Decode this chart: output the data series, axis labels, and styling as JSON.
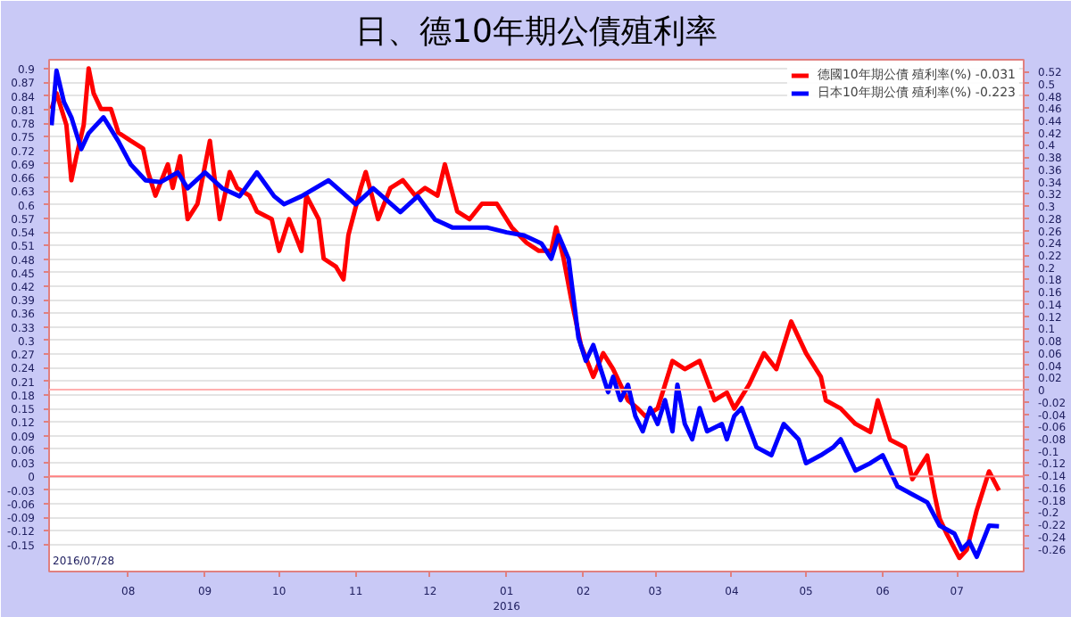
{
  "chart_data": {
    "type": "line",
    "title": "日、德10年期公債殖利率",
    "annotations": [
      "2016/07/28"
    ],
    "xlim": [
      "2015-06-30",
      "2016-07-28"
    ],
    "xticks": [
      {
        "value": "2015-08-01",
        "label": "08"
      },
      {
        "value": "2015-09-01",
        "label": "09"
      },
      {
        "value": "2015-10-01",
        "label": "10"
      },
      {
        "value": "2015-11-01",
        "label": "11"
      },
      {
        "value": "2015-12-01",
        "label": "12"
      },
      {
        "value": "2016-01-01",
        "label": "01\n2016"
      },
      {
        "value": "2016-02-01",
        "label": "02"
      },
      {
        "value": "2016-03-01",
        "label": "03"
      },
      {
        "value": "2016-04-01",
        "label": "04"
      },
      {
        "value": "2016-05-01",
        "label": "05"
      },
      {
        "value": "2016-06-01",
        "label": "06"
      },
      {
        "value": "2016-07-01",
        "label": "07"
      }
    ],
    "ylim": [
      -0.21,
      0.92
    ],
    "yticks": [
      0.9,
      0.87,
      0.84,
      0.81,
      0.78,
      0.75,
      0.72,
      0.69,
      0.66,
      0.63,
      0.6,
      0.57,
      0.54,
      0.51,
      0.48,
      0.45,
      0.42,
      0.39,
      0.36,
      0.33,
      0.3,
      0.27,
      0.24,
      0.21,
      0.18,
      0.15,
      0.12,
      0.09,
      0.06,
      0.03,
      0,
      -0.03,
      -0.06,
      -0.09,
      -0.12,
      -0.15
    ],
    "y2lim": [
      -0.297,
      0.539
    ],
    "y2ticks": [
      0.52,
      0.5,
      0.48,
      0.46,
      0.44,
      0.42,
      0.4,
      0.38,
      0.36,
      0.34,
      0.32,
      0.3,
      0.28,
      0.26,
      0.24,
      0.22,
      0.2,
      0.18,
      0.16,
      0.14,
      0.12,
      0.1,
      0.08,
      0.06,
      0.04,
      0.02,
      0,
      -0.02,
      -0.04,
      -0.06,
      -0.08,
      -0.1,
      -0.12,
      -0.14,
      -0.16,
      -0.18,
      -0.2,
      -0.22,
      -0.24,
      -0.26
    ],
    "grid": "y",
    "legend": "top right",
    "line_style": "solid",
    "ref_lines": [
      {
        "axis": "y",
        "value": 0,
        "color": "#ff8080"
      },
      {
        "axis": "y2",
        "value": 0,
        "color": "#ffb0b0"
      }
    ],
    "series": [
      {
        "name": "德國10年期公債 殖利率(%) -0.031",
        "color": "#ff0000",
        "x": [
          "2015-07-01",
          "2015-07-03",
          "2015-07-07",
          "2015-07-09",
          "2015-07-11",
          "2015-07-14",
          "2015-07-16",
          "2015-07-18",
          "2015-07-21",
          "2015-07-25",
          "2015-07-28",
          "2015-08-02",
          "2015-08-07",
          "2015-08-09",
          "2015-08-12",
          "2015-08-17",
          "2015-08-19",
          "2015-08-22",
          "2015-08-25",
          "2015-08-29",
          "2015-09-03",
          "2015-09-07",
          "2015-09-11",
          "2015-09-14",
          "2015-09-19",
          "2015-09-22",
          "2015-09-28",
          "2015-10-01",
          "2015-10-05",
          "2015-10-10",
          "2015-10-12",
          "2015-10-17",
          "2015-10-19",
          "2015-10-24",
          "2015-10-27",
          "2015-10-29",
          "2015-11-03",
          "2015-11-05",
          "2015-11-10",
          "2015-11-15",
          "2015-11-20",
          "2015-11-25",
          "2015-11-29",
          "2015-12-04",
          "2015-12-07",
          "2015-12-12",
          "2015-12-17",
          "2015-12-22",
          "2015-12-28",
          "2016-01-03",
          "2016-01-09",
          "2016-01-14",
          "2016-01-19",
          "2016-01-21",
          "2016-01-24",
          "2016-01-27",
          "2016-01-31",
          "2016-02-05",
          "2016-02-09",
          "2016-02-13",
          "2016-02-19",
          "2016-02-23",
          "2016-02-26",
          "2016-03-02",
          "2016-03-08",
          "2016-03-13",
          "2016-03-19",
          "2016-03-25",
          "2016-03-30",
          "2016-04-02",
          "2016-04-08",
          "2016-04-14",
          "2016-04-19",
          "2016-04-25",
          "2016-05-01",
          "2016-05-07",
          "2016-05-09",
          "2016-05-15",
          "2016-05-21",
          "2016-05-27",
          "2016-05-30",
          "2016-06-04",
          "2016-06-10",
          "2016-06-13",
          "2016-06-19",
          "2016-06-22",
          "2016-06-24",
          "2016-06-27",
          "2016-07-02",
          "2016-07-05",
          "2016-07-09",
          "2016-07-14",
          "2016-07-18"
        ],
        "values": [
          0.811,
          0.846,
          0.776,
          0.654,
          0.706,
          0.776,
          0.901,
          0.846,
          0.811,
          0.811,
          0.759,
          0.741,
          0.724,
          0.672,
          0.62,
          0.689,
          0.637,
          0.707,
          0.568,
          0.602,
          0.741,
          0.568,
          0.672,
          0.637,
          0.62,
          0.585,
          0.568,
          0.498,
          0.568,
          0.498,
          0.62,
          0.568,
          0.481,
          0.463,
          0.435,
          0.533,
          0.637,
          0.672,
          0.568,
          0.637,
          0.654,
          0.62,
          0.637,
          0.62,
          0.689,
          0.585,
          0.568,
          0.602,
          0.602,
          0.55,
          0.516,
          0.498,
          0.498,
          0.55,
          0.481,
          0.394,
          0.29,
          0.22,
          0.272,
          0.237,
          0.168,
          0.15,
          0.133,
          0.15,
          0.255,
          0.237,
          0.255,
          0.168,
          0.185,
          0.15,
          0.203,
          0.272,
          0.237,
          0.342,
          0.272,
          0.22,
          0.168,
          0.15,
          0.116,
          0.098,
          0.168,
          0.081,
          0.064,
          -0.006,
          0.046,
          -0.041,
          -0.093,
          -0.128,
          -0.18,
          -0.162,
          -0.075,
          0.011,
          -0.031
        ]
      },
      {
        "name": "日本10年期公債 殖利率(%) -0.223",
        "color": "#0000ff",
        "axis": "y2",
        "x": [
          "2015-07-01",
          "2015-07-03",
          "2015-07-06",
          "2015-07-09",
          "2015-07-13",
          "2015-07-16",
          "2015-07-22",
          "2015-07-28",
          "2015-08-02",
          "2015-08-08",
          "2015-08-14",
          "2015-08-21",
          "2015-08-25",
          "2015-09-01",
          "2015-09-08",
          "2015-09-15",
          "2015-09-22",
          "2015-09-29",
          "2015-10-03",
          "2015-10-10",
          "2015-10-21",
          "2015-11-01",
          "2015-11-08",
          "2015-11-19",
          "2015-11-26",
          "2015-12-03",
          "2015-12-10",
          "2015-12-17",
          "2015-12-24",
          "2016-01-01",
          "2016-01-08",
          "2016-01-15",
          "2016-01-19",
          "2016-01-22",
          "2016-01-26",
          "2016-01-28",
          "2016-01-30",
          "2016-02-02",
          "2016-02-05",
          "2016-02-08",
          "2016-02-11",
          "2016-02-13",
          "2016-02-16",
          "2016-02-19",
          "2016-02-22",
          "2016-02-25",
          "2016-02-28",
          "2016-03-02",
          "2016-03-05",
          "2016-03-08",
          "2016-03-10",
          "2016-03-13",
          "2016-03-16",
          "2016-03-19",
          "2016-03-22",
          "2016-03-28",
          "2016-03-30",
          "2016-04-02",
          "2016-04-05",
          "2016-04-11",
          "2016-04-17",
          "2016-04-22",
          "2016-04-28",
          "2016-05-01",
          "2016-05-07",
          "2016-05-12",
          "2016-05-15",
          "2016-05-21",
          "2016-05-27",
          "2016-06-01",
          "2016-06-07",
          "2016-06-13",
          "2016-06-19",
          "2016-06-24",
          "2016-06-30",
          "2016-07-03",
          "2016-07-06",
          "2016-07-09",
          "2016-07-14",
          "2016-07-18"
        ],
        "values": [
          0.432,
          0.521,
          0.47,
          0.445,
          0.393,
          0.419,
          0.445,
          0.406,
          0.368,
          0.342,
          0.339,
          0.355,
          0.329,
          0.355,
          0.329,
          0.316,
          0.355,
          0.316,
          0.303,
          0.316,
          0.342,
          0.303,
          0.329,
          0.29,
          0.316,
          0.278,
          0.265,
          0.265,
          0.265,
          0.257,
          0.252,
          0.239,
          0.214,
          0.252,
          0.214,
          0.15,
          0.085,
          0.047,
          0.073,
          0.034,
          -0.004,
          0.021,
          -0.017,
          0.008,
          -0.043,
          -0.068,
          -0.03,
          -0.056,
          -0.017,
          -0.068,
          0.008,
          -0.056,
          -0.081,
          -0.03,
          -0.068,
          -0.056,
          -0.081,
          -0.043,
          -0.03,
          -0.094,
          -0.107,
          -0.056,
          -0.081,
          -0.12,
          -0.107,
          -0.094,
          -0.081,
          -0.132,
          -0.12,
          -0.107,
          -0.158,
          -0.171,
          -0.184,
          -0.222,
          -0.235,
          -0.261,
          -0.248,
          -0.273,
          -0.222,
          -0.223
        ]
      }
    ]
  }
}
